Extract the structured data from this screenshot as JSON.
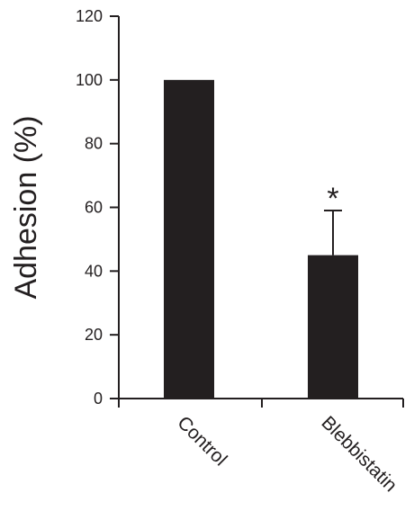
{
  "chart_data": {
    "type": "bar",
    "categories": [
      "Control",
      "Blebbistatin"
    ],
    "values": [
      100,
      45
    ],
    "error_bars_upper": [
      0,
      14
    ],
    "annotations": [
      {
        "category": "Blebbistatin",
        "text": "*"
      }
    ],
    "ylabel": "Adhesion (%)",
    "ylim": [
      0,
      120
    ],
    "yticks": [
      0,
      20,
      40,
      60,
      80,
      100,
      120
    ],
    "bar_color": "#231f20",
    "grid": false,
    "legend": "none"
  }
}
